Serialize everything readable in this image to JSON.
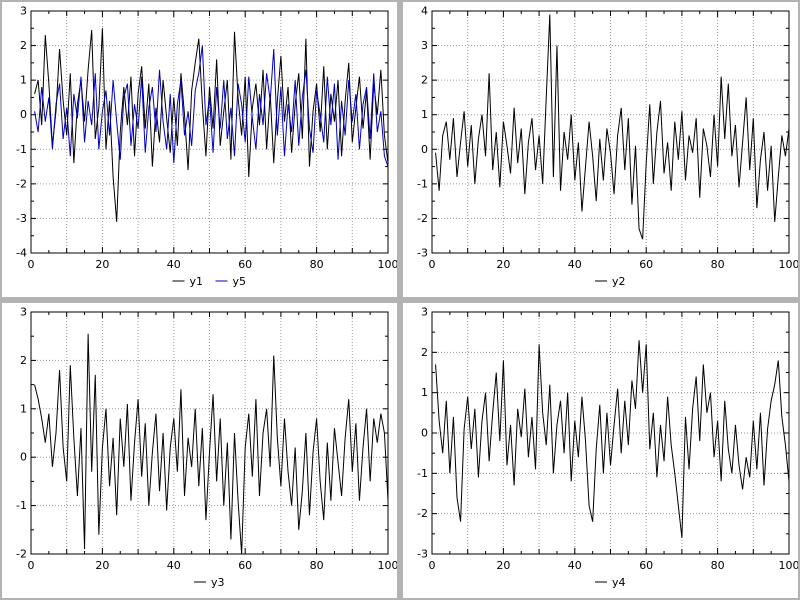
{
  "window": {
    "background": "#ffffff",
    "divider_color": "#b3b3b3",
    "grid_color": "#9a9a9a",
    "axis_color": "#000000"
  },
  "chart_data": [
    {
      "type": "line",
      "title": "",
      "xlabel": "",
      "ylabel": "",
      "xlim": [
        0,
        100
      ],
      "ylim": [
        -4,
        3
      ],
      "x_ticks": [
        0,
        20,
        40,
        60,
        80,
        100
      ],
      "y_ticks": [
        -4,
        -3,
        -2,
        -1,
        0,
        1,
        2,
        3
      ],
      "x_grid_step": 10,
      "x_minor_step": 5,
      "y_minor_step": 0.5,
      "grid": true,
      "legend_position": "bottom-center",
      "x_start": 1,
      "x_step": 1,
      "series": [
        {
          "name": "y1",
          "color": "#000000",
          "values": [
            0.6,
            1.0,
            -0.3,
            2.3,
            0.9,
            -0.9,
            0.1,
            1.9,
            0.4,
            -0.6,
            1.2,
            -1.4,
            0.3,
            1.0,
            -0.2,
            1.3,
            2.45,
            -0.7,
            0.2,
            2.5,
            -1.0,
            0.4,
            -1.8,
            -3.1,
            -0.5,
            0.8,
            -0.3,
            1.1,
            -1.2,
            0.6,
            1.4,
            -0.4,
            0.9,
            -1.5,
            0.2,
            -0.8,
            1.0,
            -0.1,
            -1.1,
            0.5,
            -0.9,
            1.2,
            0.0,
            -1.6,
            0.7,
            1.5,
            2.2,
            0.3,
            -1.2,
            0.8,
            -0.4,
            1.6,
            -0.9,
            0.1,
            1.0,
            -1.3,
            2.4,
            0.5,
            -0.6,
            1.1,
            -1.8,
            0.2,
            0.9,
            -0.3,
            1.3,
            -1.0,
            0.6,
            -1.4,
            0.4,
            1.7,
            -0.2,
            0.8,
            -1.1,
            0.3,
            1.2,
            -0.7,
            2.2,
            -1.5,
            0.1,
            0.9,
            -0.5,
            1.4,
            -1.0,
            0.6,
            -0.2,
            1.0,
            -1.2,
            0.4,
            1.5,
            -0.8,
            0.2,
            1.1,
            -0.4,
            0.7,
            -1.3,
            0.9,
            0.0,
            1.3,
            -0.6,
            -1.4
          ]
        },
        {
          "name": "y5",
          "color": "#0000c0",
          "values": [
            0.1,
            -0.5,
            0.8,
            -0.2,
            0.5,
            -1.0,
            0.3,
            0.9,
            -0.7,
            0.2,
            -1.2,
            0.6,
            -0.1,
            1.1,
            -0.8,
            0.4,
            -0.3,
            1.2,
            -1.0,
            0.1,
            0.7,
            -0.6,
            1.0,
            -0.2,
            -1.3,
            0.5,
            0.9,
            -0.9,
            0.3,
            -0.4,
            1.1,
            -1.1,
            0.2,
            0.8,
            -0.5,
            1.3,
            -0.2,
            -1.0,
            0.6,
            -1.4,
            0.3,
            1.0,
            -0.6,
            0.1,
            -0.9,
            0.7,
            1.2,
            2.0,
            -0.3,
            0.5,
            -1.1,
            0.8,
            -0.4,
            1.0,
            -0.7,
            0.2,
            -1.2,
            0.9,
            0.3,
            -0.8,
            1.1,
            -0.1,
            -1.0,
            0.6,
            -0.3,
            1.2,
            0.4,
            1.9,
            -0.6,
            0.8,
            -1.2,
            0.3,
            -0.5,
            1.0,
            -0.9,
            0.5,
            1.3,
            -0.4,
            -1.1,
            0.7,
            0.0,
            -0.8,
            1.1,
            -0.3,
            0.9,
            -1.3,
            0.4,
            -0.6,
            1.0,
            -0.2,
            0.6,
            -1.0,
            0.3,
            0.8,
            -0.7,
            1.2,
            -0.5,
            0.1,
            -1.2,
            -1.5
          ]
        }
      ]
    },
    {
      "type": "line",
      "title": "",
      "xlabel": "",
      "ylabel": "",
      "xlim": [
        0,
        100
      ],
      "ylim": [
        -3,
        4
      ],
      "x_ticks": [
        0,
        20,
        40,
        60,
        80,
        100
      ],
      "y_ticks": [
        -3,
        -2,
        -1,
        0,
        1,
        2,
        3,
        4
      ],
      "x_grid_step": 10,
      "x_minor_step": 5,
      "y_minor_step": 0.5,
      "grid": true,
      "legend_position": "bottom-center",
      "x_start": 1,
      "x_step": 1,
      "series": [
        {
          "name": "y2",
          "color": "#000000",
          "values": [
            -0.1,
            -1.2,
            0.4,
            0.8,
            -0.3,
            0.9,
            -0.8,
            0.2,
            1.1,
            -0.5,
            0.7,
            -1.0,
            0.3,
            1.0,
            -0.2,
            2.2,
            -0.6,
            0.5,
            -1.1,
            0.8,
            0.1,
            -0.7,
            1.2,
            -0.4,
            0.6,
            -1.3,
            0.2,
            0.9,
            -0.6,
            0.4,
            -1.0,
            1.5,
            3.9,
            -0.8,
            3.0,
            -1.2,
            0.5,
            -0.3,
            1.0,
            -0.9,
            0.2,
            -1.8,
            -0.5,
            0.8,
            -0.2,
            -1.5,
            0.3,
            -0.9,
            0.6,
            -0.1,
            -1.3,
            0.4,
            1.2,
            -0.6,
            0.9,
            -1.6,
            0.1,
            -2.3,
            -2.6,
            -0.4,
            1.3,
            -1.0,
            0.5,
            1.4,
            -0.7,
            0.2,
            -1.2,
            0.8,
            -0.3,
            1.1,
            -0.9,
            0.4,
            -0.1,
            0.9,
            -1.4,
            0.6,
            0.1,
            -0.8,
            1.0,
            -0.5,
            2.1,
            0.3,
            1.9,
            -0.2,
            0.7,
            -1.1,
            0.2,
            1.5,
            -0.6,
            0.9,
            -1.7,
            -0.3,
            0.5,
            -1.2,
            0.1,
            -2.1,
            -0.8,
            0.4,
            -0.2,
            0.6
          ]
        }
      ]
    },
    {
      "type": "line",
      "title": "",
      "xlabel": "",
      "ylabel": "",
      "xlim": [
        0,
        100
      ],
      "ylim": [
        -2,
        3
      ],
      "x_ticks": [
        0,
        20,
        40,
        60,
        80,
        100
      ],
      "y_ticks": [
        -2,
        -1,
        0,
        1,
        2,
        3
      ],
      "x_grid_step": 10,
      "x_minor_step": 5,
      "y_minor_step": 0.5,
      "grid": true,
      "legend_position": "bottom-center",
      "x_start": 1,
      "x_step": 1,
      "series": [
        {
          "name": "y3",
          "color": "#000000",
          "values": [
            1.5,
            1.2,
            0.8,
            0.3,
            0.9,
            -0.2,
            0.5,
            1.8,
            0.2,
            -0.5,
            1.9,
            0.4,
            -0.8,
            0.6,
            -1.9,
            2.55,
            -0.3,
            1.7,
            -1.6,
            0.2,
            1.0,
            -0.6,
            0.4,
            -1.2,
            0.8,
            -0.2,
            1.1,
            -0.9,
            0.3,
            1.2,
            -0.4,
            0.7,
            -1.0,
            0.1,
            0.9,
            -0.7,
            0.5,
            -1.1,
            0.2,
            0.8,
            -0.3,
            1.4,
            -0.8,
            0.4,
            -0.2,
            1.0,
            -0.6,
            0.6,
            -1.3,
            0.1,
            1.3,
            -0.5,
            0.8,
            -1.0,
            0.3,
            -1.7,
            0.5,
            -0.9,
            -2.0,
            0.2,
            0.9,
            -0.4,
            1.2,
            -0.8,
            0.5,
            1.0,
            -0.2,
            2.1,
            0.4,
            -0.6,
            0.8,
            -0.3,
            -1.0,
            0.2,
            -1.5,
            -0.7,
            0.5,
            -1.2,
            0.1,
            0.8,
            -0.5,
            -1.3,
            0.3,
            -0.9,
            0.6,
            -0.1,
            -0.8,
            0.4,
            1.2,
            -0.3,
            0.7,
            -0.9,
            0.2,
            1.0,
            -0.5,
            0.8,
            0.3,
            0.9,
            0.5,
            -0.9
          ]
        }
      ]
    },
    {
      "type": "line",
      "title": "",
      "xlabel": "",
      "ylabel": "",
      "xlim": [
        0,
        100
      ],
      "ylim": [
        -3,
        3
      ],
      "x_ticks": [
        0,
        20,
        40,
        60,
        80,
        100
      ],
      "y_ticks": [
        -3,
        -2,
        -1,
        0,
        1,
        2,
        3
      ],
      "x_grid_step": 10,
      "x_minor_step": 5,
      "y_minor_step": 0.5,
      "grid": true,
      "legend_position": "bottom-center",
      "x_start": 1,
      "x_step": 1,
      "series": [
        {
          "name": "y4",
          "color": "#000000",
          "values": [
            1.7,
            0.3,
            -0.5,
            0.8,
            -1.0,
            0.4,
            -1.6,
            -2.2,
            0.1,
            0.9,
            -0.4,
            0.6,
            -1.1,
            0.3,
            1.0,
            -0.7,
            0.5,
            1.5,
            -0.2,
            1.8,
            -0.8,
            0.2,
            -1.3,
            0.6,
            -0.1,
            1.1,
            -0.6,
            0.4,
            -0.9,
            2.2,
            0.5,
            -0.3,
            1.2,
            -1.0,
            0.2,
            0.8,
            -0.5,
            1.0,
            -1.2,
            0.3,
            -0.6,
            0.9,
            -0.2,
            -1.8,
            -2.2,
            -0.4,
            0.7,
            -1.0,
            0.5,
            -0.8,
            0.2,
            1.1,
            -0.5,
            0.8,
            -0.3,
            1.3,
            0.6,
            2.3,
            1.0,
            2.2,
            -0.4,
            0.5,
            -1.1,
            0.2,
            -0.7,
            0.9,
            -0.3,
            -1.0,
            -1.8,
            -2.6,
            0.4,
            -0.9,
            0.6,
            1.4,
            -0.2,
            1.7,
            0.5,
            1.0,
            -0.6,
            0.3,
            -1.2,
            0.8,
            -0.4,
            -1.0,
            0.2,
            -0.8,
            -1.4,
            -0.6,
            -1.1,
            0.3,
            -0.9,
            0.5,
            -1.3,
            0.1,
            0.8,
            1.2,
            1.8,
            0.4,
            -0.3,
            -1.2
          ]
        }
      ]
    }
  ]
}
